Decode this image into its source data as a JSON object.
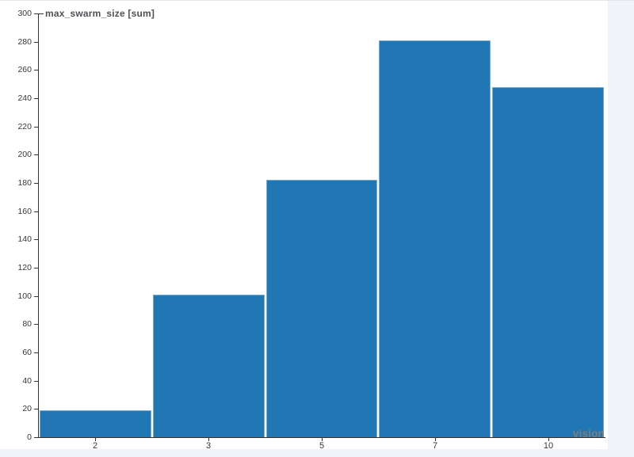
{
  "page": {
    "background": "#f0f4f8",
    "panel_background": "#ffffff"
  },
  "chart_data": {
    "type": "bar",
    "title": "max_swarm_size [sum]",
    "categories": [
      "2",
      "3",
      "5",
      "7",
      "10"
    ],
    "values": [
      19,
      101,
      182,
      281,
      248
    ],
    "xlabel": "",
    "ylabel": "",
    "ylim": [
      0,
      300
    ],
    "y_ticks": [
      0,
      20,
      40,
      60,
      80,
      100,
      120,
      140,
      160,
      180,
      200,
      220,
      240,
      260,
      280,
      300
    ],
    "grid": false,
    "legend_position": "none",
    "bar_color": "#2077b4",
    "bar_edge_color": "#79aed3",
    "axis_color": "#333333",
    "title_color": "#4d5055"
  },
  "watermark": {
    "text": "vision",
    "color": "#837e77"
  }
}
